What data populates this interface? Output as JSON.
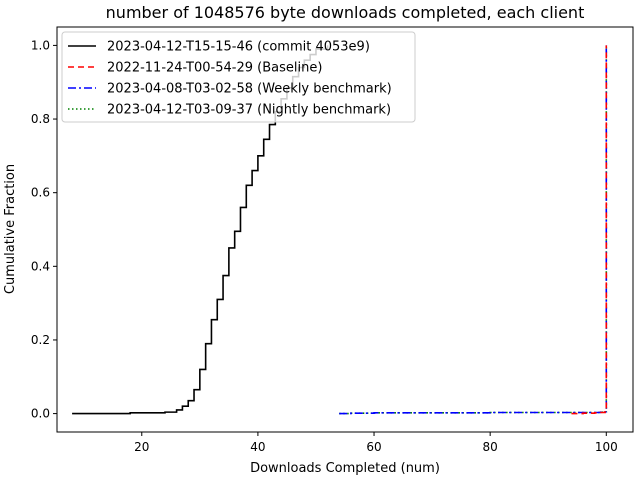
{
  "chart_data": {
    "type": "line",
    "title": "number of 1048576 byte downloads completed, each client",
    "xlabel": "Downloads Completed (num)",
    "ylabel": "Cumulative Fraction",
    "xlim": [
      5.4,
      104.6
    ],
    "ylim": [
      -0.05,
      1.05
    ],
    "xticks": [
      20,
      40,
      60,
      80,
      100
    ],
    "yticks": [
      0.0,
      0.2,
      0.4,
      0.6,
      0.8,
      1.0
    ],
    "xtick_labels": [
      "20",
      "40",
      "60",
      "80",
      "100"
    ],
    "ytick_labels": [
      "0.0",
      "0.2",
      "0.4",
      "0.6",
      "0.8",
      "1.0"
    ],
    "grid": false,
    "legend_position": "top-left",
    "series": [
      {
        "name": "2023-04-12-T15-15-46 (commit 4053e9)",
        "color": "#000000",
        "dash": "solid",
        "step": true,
        "x": [
          8,
          18,
          24,
          26,
          27,
          28,
          29,
          30,
          31,
          32,
          33,
          34,
          35,
          36,
          37,
          38,
          39,
          40,
          41,
          42,
          43,
          44,
          45,
          46,
          47,
          48,
          49,
          50,
          52
        ],
        "y": [
          0.0,
          0.002,
          0.004,
          0.01,
          0.02,
          0.035,
          0.065,
          0.12,
          0.19,
          0.255,
          0.31,
          0.375,
          0.45,
          0.495,
          0.56,
          0.62,
          0.66,
          0.7,
          0.745,
          0.785,
          0.82,
          0.855,
          0.885,
          0.915,
          0.94,
          0.96,
          0.975,
          0.99,
          1.0
        ]
      },
      {
        "name": "2022-11-24-T00-54-29 (Baseline)",
        "color": "#ff0000",
        "dash": "dashed",
        "step": true,
        "x": [
          94,
          96,
          98,
          99,
          99.8,
          100
        ],
        "y": [
          0.0,
          0.001,
          0.002,
          0.003,
          0.005,
          1.0
        ]
      },
      {
        "name": "2023-04-08-T03-02-58 (Weekly benchmark)",
        "color": "#0000ff",
        "dash": "dashdot",
        "step": true,
        "x": [
          54,
          56,
          60,
          70,
          80,
          90,
          95,
          99,
          99.8,
          100
        ],
        "y": [
          0.0,
          0.001,
          0.002,
          0.002,
          0.003,
          0.003,
          0.003,
          0.004,
          0.005,
          1.0
        ]
      },
      {
        "name": "2023-04-12-T03-09-37 (Nightly benchmark)",
        "color": "#008000",
        "dash": "dotted",
        "step": true,
        "x": [
          54,
          56,
          60,
          70,
          80,
          90,
          95,
          99,
          99.8,
          100
        ],
        "y": [
          0.0,
          0.001,
          0.002,
          0.002,
          0.003,
          0.003,
          0.003,
          0.004,
          0.005,
          1.0
        ]
      }
    ]
  }
}
